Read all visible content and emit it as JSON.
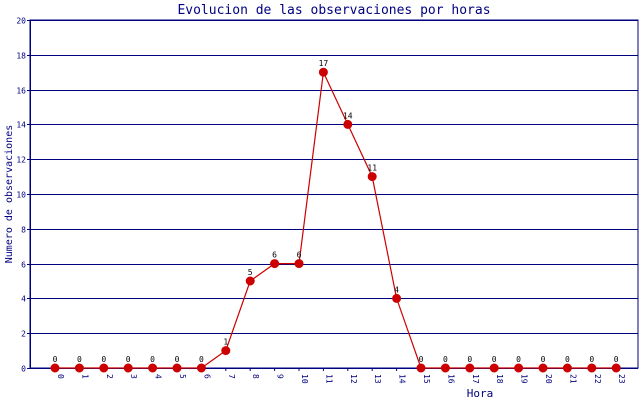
{
  "chart_data": {
    "type": "line",
    "title": "Evolucion de las observaciones por horas",
    "xlabel": "Hora",
    "ylabel": "Numero de observaciones",
    "categories": [
      "0",
      "1",
      "2",
      "3",
      "4",
      "5",
      "6",
      "7",
      "8",
      "9",
      "10",
      "11",
      "12",
      "13",
      "14",
      "15",
      "16",
      "17",
      "18",
      "19",
      "20",
      "21",
      "22",
      "23"
    ],
    "series": [
      {
        "values": [
          0,
          0,
          0,
          0,
          0,
          0,
          0,
          1,
          5,
          6,
          6,
          17,
          14,
          11,
          4,
          0,
          0,
          0,
          0,
          0,
          0,
          0,
          0,
          0
        ]
      }
    ],
    "ylim": [
      0,
      20
    ],
    "yticks": [
      0,
      2,
      4,
      6,
      8,
      10,
      12,
      14,
      16,
      18,
      20
    ],
    "grid": true,
    "data_labels": true,
    "colors": {
      "title": "#000080",
      "axis_text": "#000080",
      "grid": "#000080",
      "line": "#cc0000",
      "marker": "#cc0000",
      "data_label": "#000000"
    }
  }
}
